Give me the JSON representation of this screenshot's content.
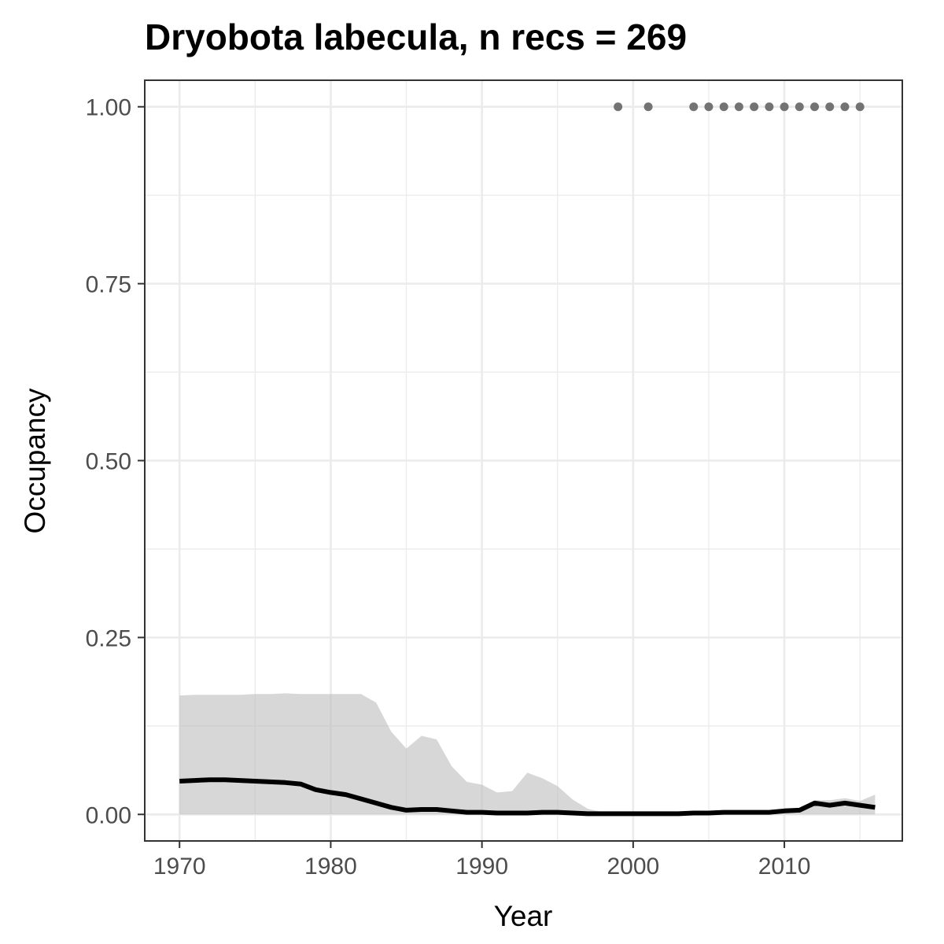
{
  "chart_data": {
    "type": "line",
    "title": "Dryobota labecula, n recs = 269",
    "xlabel": "Year",
    "ylabel": "Occupancy",
    "xlim": [
      1967.7,
      2017.8
    ],
    "ylim": [
      -0.0375,
      1.0375
    ],
    "x_ticks": [
      1970,
      1980,
      1990,
      2000,
      2010
    ],
    "x_tick_labels": [
      "1970",
      "1980",
      "1990",
      "2000",
      "2010"
    ],
    "y_ticks": [
      0,
      0.25,
      0.5,
      0.75,
      1.0
    ],
    "y_tick_labels": [
      "0.00",
      "0.25",
      "0.50",
      "0.75",
      "1.00"
    ],
    "grid": true,
    "legend": "none",
    "colors": {
      "line": "#000000",
      "ribbon": "#bdbdbd",
      "points": "#737373",
      "grid": "#ebebeb",
      "panel_border": "#333333"
    },
    "years": [
      1970,
      1971,
      1972,
      1973,
      1974,
      1975,
      1976,
      1977,
      1978,
      1979,
      1980,
      1981,
      1982,
      1983,
      1984,
      1985,
      1986,
      1987,
      1988,
      1989,
      1990,
      1991,
      1992,
      1993,
      1994,
      1995,
      1996,
      1997,
      1998,
      1999,
      2000,
      2001,
      2002,
      2003,
      2004,
      2005,
      2006,
      2007,
      2008,
      2009,
      2010,
      2011,
      2012,
      2013,
      2014,
      2015,
      2016
    ],
    "mean": [
      0.047,
      0.048,
      0.049,
      0.049,
      0.048,
      0.047,
      0.046,
      0.045,
      0.043,
      0.035,
      0.031,
      0.028,
      0.022,
      0.016,
      0.01,
      0.006,
      0.007,
      0.007,
      0.005,
      0.003,
      0.003,
      0.002,
      0.002,
      0.002,
      0.003,
      0.003,
      0.002,
      0.001,
      0.001,
      0.001,
      0.001,
      0.001,
      0.001,
      0.001,
      0.002,
      0.002,
      0.003,
      0.003,
      0.003,
      0.003,
      0.005,
      0.006,
      0.016,
      0.013,
      0.016,
      0.013,
      0.01
    ],
    "lower": [
      0.0,
      0.0,
      0.0,
      0.0,
      0.0,
      0.0,
      0.0,
      0.0,
      0.0,
      0.0,
      0.0,
      0.0,
      0.0,
      0.0,
      0.0,
      0.0,
      0.0,
      0.0,
      0.0,
      0.0,
      0.0,
      0.0,
      0.0,
      0.0,
      0.0,
      0.0,
      0.0,
      0.0,
      0.0,
      0.0,
      0.0,
      0.0,
      0.0,
      0.0,
      0.0,
      0.0,
      0.0,
      0.0,
      0.0,
      0.0,
      0.0,
      0.0,
      0.0,
      0.0,
      0.0,
      0.0,
      0.0
    ],
    "upper": [
      0.168,
      0.169,
      0.169,
      0.169,
      0.169,
      0.17,
      0.17,
      0.171,
      0.17,
      0.17,
      0.17,
      0.17,
      0.17,
      0.158,
      0.117,
      0.093,
      0.111,
      0.106,
      0.068,
      0.046,
      0.042,
      0.031,
      0.033,
      0.059,
      0.051,
      0.04,
      0.021,
      0.008,
      0.003,
      0.002,
      0.002,
      0.002,
      0.002,
      0.002,
      0.003,
      0.004,
      0.004,
      0.004,
      0.004,
      0.004,
      0.005,
      0.008,
      0.02,
      0.02,
      0.023,
      0.019,
      0.028
    ],
    "record_years": [
      1999,
      2001,
      2004,
      2005,
      2006,
      2007,
      2008,
      2009,
      2010,
      2011,
      2012,
      2013,
      2014,
      2015
    ],
    "record_value": 1.0
  }
}
